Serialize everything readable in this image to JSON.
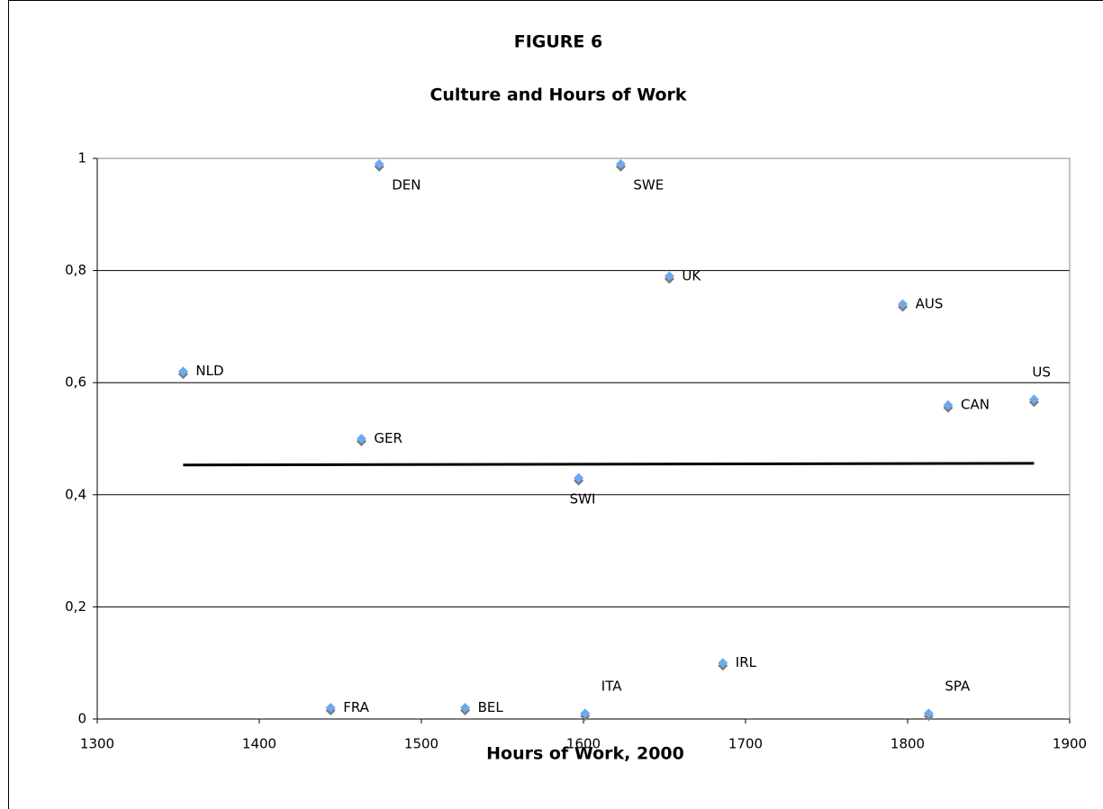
{
  "chart_data": {
    "type": "scatter",
    "figure_label": "FIGURE 6",
    "title": "Culture and Hours of Work",
    "x_label": "Hours of Work, 2000",
    "labels": [
      "NLD",
      "DEN",
      "SWE",
      "UK",
      "AUS",
      "US",
      "CAN",
      "GER",
      "SWI",
      "FRA",
      "BEL",
      "ITA",
      "IRL",
      "SPA"
    ],
    "x": [
      1353,
      1474,
      1623,
      1653,
      1797,
      1878,
      1825,
      1463,
      1597,
      1444,
      1527,
      1601,
      1686,
      1813
    ],
    "y": [
      0.62,
      0.99,
      0.99,
      0.79,
      0.74,
      0.57,
      0.56,
      0.5,
      0.43,
      0.02,
      0.02,
      0.01,
      0.1,
      0.01
    ],
    "color": "#6fa8f0",
    "trendline": {
      "x": [
        1353,
        1878
      ],
      "y": [
        0.453,
        0.456
      ],
      "color": "#000000"
    },
    "xlim": [
      1300,
      1900
    ],
    "xticks": [
      1300,
      1400,
      1500,
      1600,
      1700,
      1800,
      1900
    ],
    "ylim": [
      0,
      1
    ],
    "yticks": [
      0,
      {
        "value": 0.2,
        "label": "0,2"
      },
      {
        "value": 0.4,
        "label": "0,4"
      },
      {
        "value": 0.6,
        "label": "0,6"
      },
      {
        "value": 0.8,
        "label": "0,8"
      },
      1
    ],
    "grid": true
  }
}
